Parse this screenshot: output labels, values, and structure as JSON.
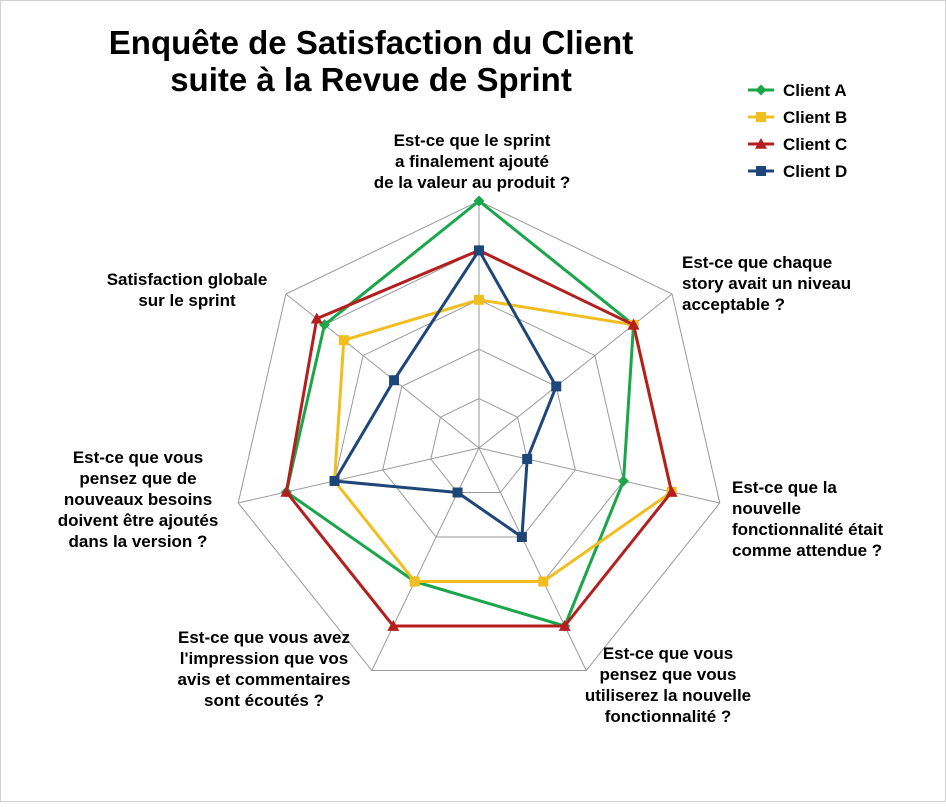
{
  "chart_data": {
    "type": "radar",
    "title_lines": [
      "Enquête de Satisfaction du Client",
      "suite à la Revue de Sprint"
    ],
    "rmax": 5,
    "grid_levels": 5,
    "grid": true,
    "legend_position": "top-right",
    "axes": [
      {
        "lines": [
          "Est-ce que le sprint",
          "a finalement ajouté",
          "de la valeur au produit ?"
        ]
      },
      {
        "lines": [
          "Est-ce que chaque",
          "story avait un niveau",
          "acceptable ?"
        ]
      },
      {
        "lines": [
          "Est-ce que la",
          "nouvelle",
          "fonctionnalité était",
          "comme attendue ?"
        ]
      },
      {
        "lines": [
          "Est-ce que vous",
          "pensez que vous",
          "utiliserez la nouvelle",
          "fonctionnalité ?"
        ]
      },
      {
        "lines": [
          "Est-ce que vous avez",
          "l'impression que vos",
          "avis et commentaires",
          "sont écoutés ?"
        ]
      },
      {
        "lines": [
          "Est-ce que vous",
          "pensez que de",
          "nouveaux besoins",
          "doivent être ajoutés",
          "dans la version ?"
        ]
      },
      {
        "lines": [
          "Satisfaction globale",
          "sur le sprint"
        ]
      }
    ],
    "series": [
      {
        "name": "Client A",
        "color": "#1aa64b",
        "marker": "diamond",
        "values": [
          5,
          4,
          3,
          4,
          3,
          4,
          4
        ]
      },
      {
        "name": "Client B",
        "color": "#f0be1e",
        "marker": "square",
        "values": [
          3,
          4,
          4,
          3,
          3,
          3,
          3.5
        ]
      },
      {
        "name": "Client C",
        "color": "#b41e1e",
        "marker": "triangle",
        "values": [
          4,
          4,
          4,
          4,
          4,
          4,
          4.2
        ]
      },
      {
        "name": "Client D",
        "color": "#1e4678",
        "marker": "square",
        "values": [
          4,
          2,
          1,
          2,
          1,
          3,
          2.2
        ]
      }
    ]
  }
}
